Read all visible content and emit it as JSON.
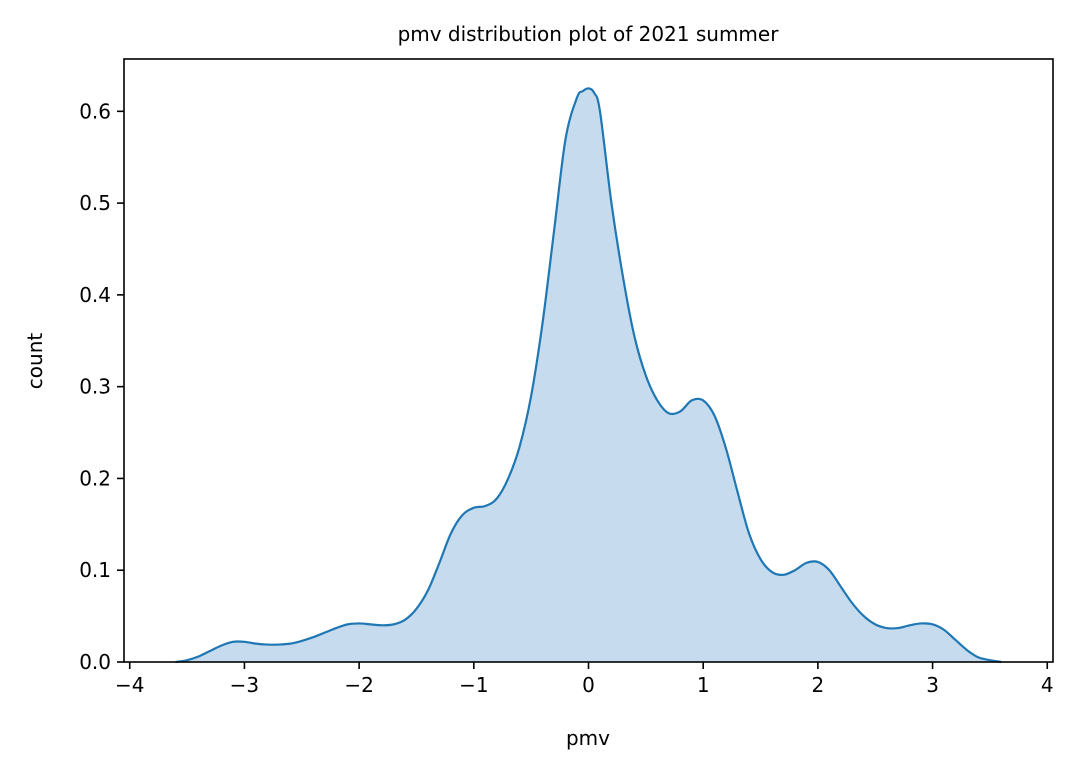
{
  "chart_data": {
    "type": "area",
    "title": "pmv distribution plot of 2021 summer",
    "xlabel": "pmv",
    "ylabel": "count",
    "xlim": [
      -4.05,
      4.05
    ],
    "ylim": [
      0,
      0.657
    ],
    "xticks": [
      {
        "value": -4,
        "label": "−4"
      },
      {
        "value": -3,
        "label": "−3"
      },
      {
        "value": -2,
        "label": "−2"
      },
      {
        "value": -1,
        "label": "−1"
      },
      {
        "value": 0,
        "label": "0"
      },
      {
        "value": 1,
        "label": "1"
      },
      {
        "value": 2,
        "label": "2"
      },
      {
        "value": 3,
        "label": "3"
      },
      {
        "value": 4,
        "label": "4"
      }
    ],
    "yticks": [
      {
        "value": 0.0,
        "label": "0.0"
      },
      {
        "value": 0.1,
        "label": "0.1"
      },
      {
        "value": 0.2,
        "label": "0.2"
      },
      {
        "value": 0.3,
        "label": "0.3"
      },
      {
        "value": 0.4,
        "label": "0.4"
      },
      {
        "value": 0.5,
        "label": "0.5"
      },
      {
        "value": 0.6,
        "label": "0.6"
      }
    ],
    "grid": false,
    "legend": "none",
    "line_color": "#1f77b4",
    "fill_color": "#c6dbed",
    "series": [
      {
        "x": [
          -3.6,
          -3.5,
          -3.4,
          -3.3,
          -3.2,
          -3.1,
          -3.0,
          -2.9,
          -2.8,
          -2.7,
          -2.6,
          -2.5,
          -2.4,
          -2.3,
          -2.2,
          -2.1,
          -2.0,
          -1.9,
          -1.8,
          -1.7,
          -1.6,
          -1.5,
          -1.4,
          -1.3,
          -1.2,
          -1.1,
          -1.0,
          -0.9,
          -0.8,
          -0.7,
          -0.6,
          -0.5,
          -0.4,
          -0.3,
          -0.2,
          -0.1,
          -0.05,
          0.0,
          0.05,
          0.1,
          0.2,
          0.3,
          0.4,
          0.5,
          0.6,
          0.7,
          0.8,
          0.9,
          1.0,
          1.1,
          1.2,
          1.3,
          1.4,
          1.5,
          1.6,
          1.7,
          1.8,
          1.9,
          2.0,
          2.1,
          2.2,
          2.3,
          2.4,
          2.5,
          2.6,
          2.7,
          2.8,
          2.9,
          3.0,
          3.1,
          3.2,
          3.3,
          3.4,
          3.5,
          3.6
        ],
        "y": [
          0.0,
          0.002,
          0.006,
          0.012,
          0.018,
          0.022,
          0.022,
          0.02,
          0.019,
          0.019,
          0.02,
          0.023,
          0.027,
          0.032,
          0.037,
          0.041,
          0.042,
          0.041,
          0.04,
          0.041,
          0.046,
          0.058,
          0.078,
          0.108,
          0.14,
          0.16,
          0.168,
          0.17,
          0.178,
          0.2,
          0.235,
          0.29,
          0.37,
          0.47,
          0.57,
          0.615,
          0.622,
          0.625,
          0.62,
          0.6,
          0.5,
          0.42,
          0.355,
          0.312,
          0.285,
          0.271,
          0.273,
          0.285,
          0.285,
          0.268,
          0.232,
          0.185,
          0.14,
          0.112,
          0.098,
          0.095,
          0.1,
          0.108,
          0.109,
          0.1,
          0.082,
          0.064,
          0.05,
          0.041,
          0.037,
          0.037,
          0.04,
          0.042,
          0.041,
          0.035,
          0.024,
          0.013,
          0.005,
          0.002,
          0.0
        ]
      }
    ]
  }
}
